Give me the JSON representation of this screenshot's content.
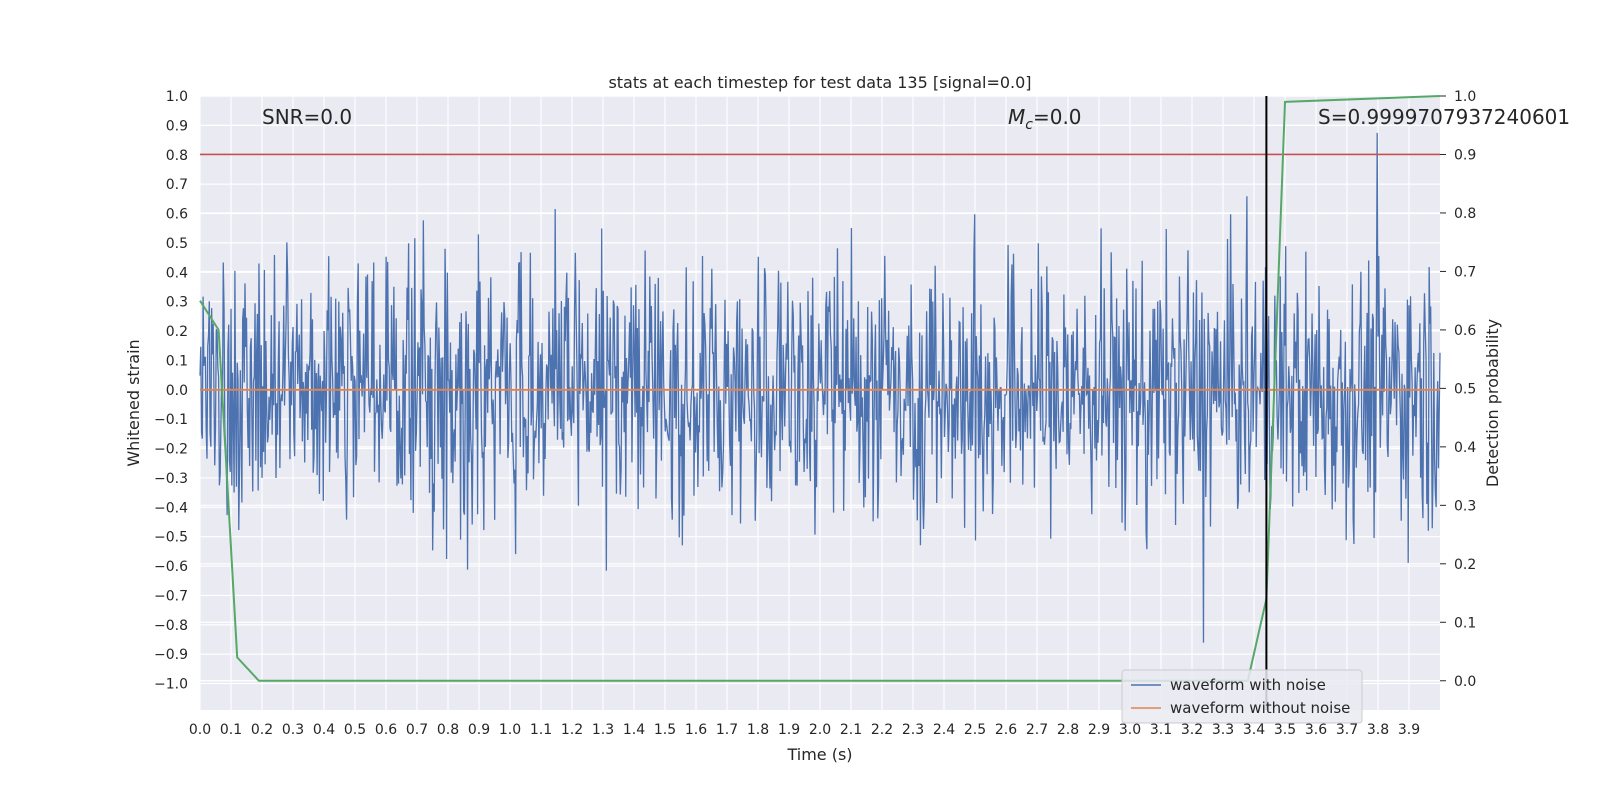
{
  "chart_data": {
    "type": "line",
    "title": "stats at each timestep for test data 135 [signal=0.0]",
    "xlabel": "Time (s)",
    "ylabel_left": "Whitened strain",
    "ylabel_right": "Detection probability",
    "xlim": [
      0.0,
      4.0
    ],
    "ylim_left": [
      -1.09,
      1.0
    ],
    "ylim_right": [
      -0.05,
      1.0
    ],
    "x_ticks": [
      "0.0",
      "0.1",
      "0.2",
      "0.3",
      "0.4",
      "0.5",
      "0.6",
      "0.7",
      "0.8",
      "0.9",
      "1.0",
      "1.1",
      "1.2",
      "1.3",
      "1.4",
      "1.5",
      "1.6",
      "1.7",
      "1.8",
      "1.9",
      "2.0",
      "2.1",
      "2.2",
      "2.3",
      "2.4",
      "2.5",
      "2.6",
      "2.7",
      "2.8",
      "2.9",
      "3.0",
      "3.1",
      "3.2",
      "3.3",
      "3.4",
      "3.5",
      "3.6",
      "3.7",
      "3.8",
      "3.9"
    ],
    "y_ticks_left": [
      "1.0",
      "0.9",
      "0.8",
      "0.7",
      "0.6",
      "0.5",
      "0.4",
      "0.3",
      "0.2",
      "0.1",
      "0.0",
      "−0.1",
      "−0.2",
      "−0.3",
      "−0.4",
      "−0.5",
      "−0.6",
      "−0.7",
      "−0.8",
      "−0.9",
      "−1.0"
    ],
    "y_ticks_right": [
      "1.0",
      "0.9",
      "0.8",
      "0.7",
      "0.6",
      "0.5",
      "0.4",
      "0.3",
      "0.2",
      "0.1",
      "0.0"
    ],
    "annotations": {
      "snr": "SNR=0.0",
      "mc_symbol": "M",
      "mc_sub": "c",
      "mc_value": "=0.0",
      "s_value": "S=0.9999707937240601"
    },
    "series": [
      {
        "name": "waveform with noise",
        "axis": "left",
        "color": "#4c72b0",
        "description_values": "dense noise, roughly uniform in [-0.85, 0.9]",
        "noise_seed": 135,
        "n_points": 1600
      },
      {
        "name": "waveform without noise",
        "axis": "left",
        "color": "#dd8452",
        "x": [
          0.0,
          4.0
        ],
        "y": [
          0.0,
          0.0
        ]
      },
      {
        "name": "detection probability",
        "axis": "right",
        "color": "#55a868",
        "x": [
          0.0,
          0.06,
          0.12,
          0.19,
          3.38,
          3.44,
          3.5,
          4.0
        ],
        "y": [
          0.65,
          0.6,
          0.04,
          0.0,
          0.0,
          0.14,
          0.99,
          1.0
        ]
      }
    ],
    "reference_lines": {
      "threshold_right": {
        "value": 0.9,
        "color": "#c44e52"
      },
      "event_time": {
        "value": 3.44,
        "color": "#000000"
      }
    },
    "legend": {
      "placement": "lower-right",
      "entries": [
        {
          "label": "waveform with noise",
          "color": "#4c72b0"
        },
        {
          "label": "waveform without noise",
          "color": "#dd8452"
        }
      ]
    },
    "grid": true,
    "background": "#eaeaf2"
  }
}
